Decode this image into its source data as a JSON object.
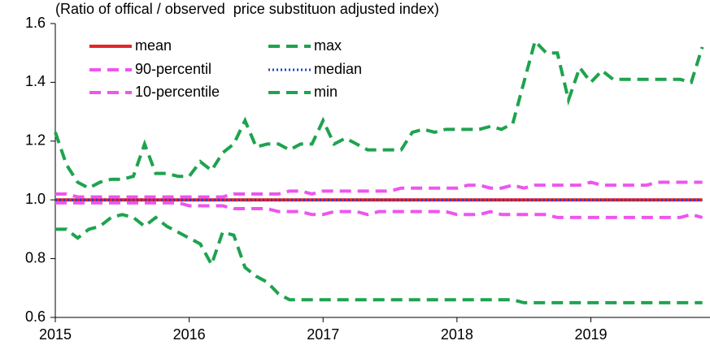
{
  "chart_data": {
    "type": "line",
    "title": "(Ratio of offical / observed  price substituon adjusted index)",
    "x": [
      2015,
      2015.083,
      2015.167,
      2015.25,
      2015.333,
      2015.417,
      2015.5,
      2015.583,
      2015.667,
      2015.75,
      2015.833,
      2015.917,
      2016,
      2016.083,
      2016.167,
      2016.25,
      2016.333,
      2016.417,
      2016.5,
      2016.583,
      2016.667,
      2016.75,
      2016.833,
      2016.917,
      2017,
      2017.083,
      2017.167,
      2017.25,
      2017.333,
      2017.417,
      2017.5,
      2017.583,
      2017.667,
      2017.75,
      2017.833,
      2017.917,
      2018,
      2018.083,
      2018.167,
      2018.25,
      2018.333,
      2018.417,
      2018.5,
      2018.583,
      2018.667,
      2018.75,
      2018.833,
      2018.917,
      2019,
      2019.083,
      2019.167,
      2019.25,
      2019.333,
      2019.417,
      2019.5,
      2019.583,
      2019.667,
      2019.75,
      2019.833
    ],
    "xlim": [
      2015,
      2019.89
    ],
    "xticks": [
      2015,
      2016,
      2017,
      2018,
      2019
    ],
    "ylim": [
      0.6,
      1.6
    ],
    "yticks": [
      0.6,
      0.8,
      {
        "value": 1,
        "label": "1.0"
      },
      1.2,
      1.4,
      1.6
    ],
    "series": [
      {
        "name": "mean",
        "color": "#e3262a",
        "style": "solid",
        "values": [
          1,
          1,
          1,
          1,
          1,
          1,
          1,
          1,
          1,
          1,
          1,
          1,
          1,
          1,
          1,
          1,
          1,
          1,
          1,
          1,
          1,
          1,
          1,
          1,
          1,
          1,
          1,
          1,
          1,
          1,
          1,
          1,
          1,
          1,
          1,
          1,
          1,
          1,
          1,
          1,
          1,
          1,
          1,
          1,
          1,
          1,
          1,
          1,
          1,
          1,
          1,
          1,
          1,
          1,
          1,
          1,
          1,
          1,
          1
        ]
      },
      {
        "name": "90-percentil",
        "color": "#ee55ee",
        "style": "dashed",
        "values": [
          1.02,
          1.02,
          1.01,
          1.01,
          1.01,
          1.01,
          1.01,
          1.01,
          1.01,
          1.01,
          1.01,
          1.01,
          1.01,
          1.01,
          1.01,
          1.01,
          1.02,
          1.02,
          1.02,
          1.02,
          1.02,
          1.03,
          1.03,
          1.02,
          1.03,
          1.03,
          1.03,
          1.03,
          1.03,
          1.03,
          1.03,
          1.04,
          1.04,
          1.04,
          1.04,
          1.04,
          1.04,
          1.05,
          1.05,
          1.04,
          1.04,
          1.05,
          1.04,
          1.05,
          1.05,
          1.05,
          1.05,
          1.05,
          1.06,
          1.05,
          1.05,
          1.05,
          1.05,
          1.05,
          1.06,
          1.06,
          1.06,
          1.06,
          1.06
        ]
      },
      {
        "name": "10-percentile",
        "color": "#ee55ee",
        "style": "dashed",
        "values": [
          0.99,
          0.99,
          0.99,
          0.99,
          0.99,
          0.99,
          0.99,
          0.99,
          0.99,
          0.99,
          0.99,
          0.99,
          0.98,
          0.98,
          0.98,
          0.98,
          0.97,
          0.97,
          0.97,
          0.97,
          0.96,
          0.96,
          0.96,
          0.95,
          0.95,
          0.96,
          0.96,
          0.96,
          0.95,
          0.96,
          0.96,
          0.96,
          0.96,
          0.96,
          0.96,
          0.96,
          0.95,
          0.95,
          0.95,
          0.96,
          0.95,
          0.95,
          0.95,
          0.95,
          0.95,
          0.94,
          0.94,
          0.94,
          0.94,
          0.94,
          0.94,
          0.94,
          0.94,
          0.94,
          0.94,
          0.94,
          0.94,
          0.95,
          0.94
        ]
      },
      {
        "name": "max",
        "color": "#1ea34e",
        "style": "dashed",
        "values": [
          1.23,
          1.12,
          1.06,
          1.04,
          1.06,
          1.07,
          1.07,
          1.08,
          1.19,
          1.09,
          1.09,
          1.08,
          1.08,
          1.13,
          1.1,
          1.16,
          1.19,
          1.27,
          1.18,
          1.19,
          1.19,
          1.17,
          1.19,
          1.19,
          1.27,
          1.19,
          1.21,
          1.19,
          1.17,
          1.17,
          1.17,
          1.17,
          1.23,
          1.24,
          1.23,
          1.24,
          1.24,
          1.24,
          1.24,
          1.25,
          1.24,
          1.26,
          1.4,
          1.54,
          1.5,
          1.5,
          1.34,
          1.45,
          1.4,
          1.44,
          1.41,
          1.41,
          1.41,
          1.41,
          1.41,
          1.41,
          1.41,
          1.4,
          1.52
        ]
      },
      {
        "name": "median",
        "color": "#1f3fd0",
        "style": "dotted",
        "values": [
          1,
          1,
          1,
          1,
          1,
          1,
          1,
          1,
          1,
          1,
          1,
          1,
          1,
          1,
          1,
          1,
          1,
          1,
          1,
          1,
          1,
          1,
          1,
          1,
          1,
          1,
          1,
          1,
          1,
          1,
          1,
          1,
          1,
          1,
          1,
          1,
          1,
          1,
          1,
          1,
          1,
          1,
          1,
          1,
          1,
          1,
          1,
          1,
          1,
          1,
          1,
          1,
          1,
          1,
          1,
          1,
          1,
          1,
          1
        ]
      },
      {
        "name": "min",
        "color": "#1ea34e",
        "style": "dashed",
        "values": [
          0.9,
          0.9,
          0.87,
          0.9,
          0.91,
          0.94,
          0.95,
          0.94,
          0.91,
          0.94,
          0.91,
          0.89,
          0.87,
          0.85,
          0.78,
          0.89,
          0.88,
          0.77,
          0.74,
          0.72,
          0.68,
          0.66,
          0.66,
          0.66,
          0.66,
          0.66,
          0.66,
          0.66,
          0.66,
          0.66,
          0.66,
          0.66,
          0.66,
          0.66,
          0.66,
          0.66,
          0.66,
          0.66,
          0.66,
          0.66,
          0.66,
          0.66,
          0.65,
          0.65,
          0.65,
          0.65,
          0.65,
          0.65,
          0.65,
          0.65,
          0.65,
          0.65,
          0.65,
          0.65,
          0.65,
          0.65,
          0.65,
          0.65,
          0.65
        ]
      }
    ]
  }
}
